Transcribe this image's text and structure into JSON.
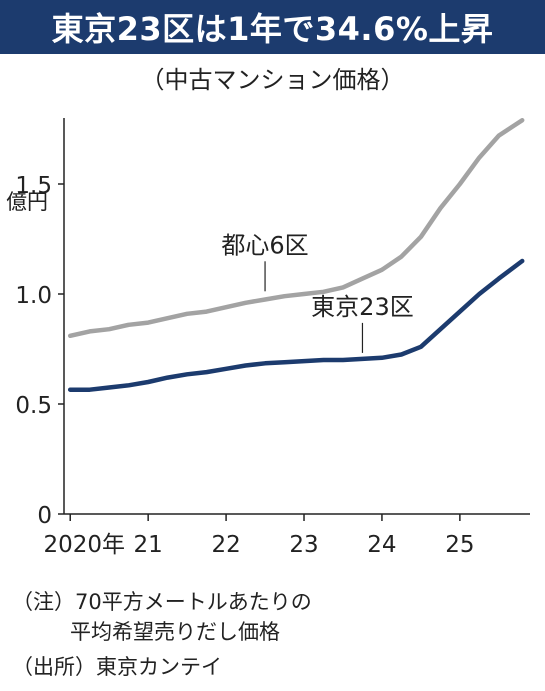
{
  "chart_data": {
    "type": "line",
    "title": "東京23区は1年で34.6%上昇",
    "subtitle": "（中古マンション価格）",
    "ylabel": "億円",
    "ylim": [
      0,
      2.0
    ],
    "xlim": [
      2020.0,
      2025.9
    ],
    "yticks": [
      {
        "value": 0,
        "label": "0"
      },
      {
        "value": 0.5,
        "label": "0.5"
      },
      {
        "value": 1.0,
        "label": "1.0"
      },
      {
        "value": 1.5,
        "label": "1.5"
      }
    ],
    "xticks": [
      {
        "value": 2020,
        "label": "2020年"
      },
      {
        "value": 2021,
        "label": "21"
      },
      {
        "value": 2022,
        "label": "22"
      },
      {
        "value": 2023,
        "label": "23"
      },
      {
        "value": 2024,
        "label": "24"
      },
      {
        "value": 2025,
        "label": "25"
      }
    ],
    "grid": false,
    "series": [
      {
        "name": "都心6区",
        "color": "#a3a3a3",
        "label_at": {
          "x": 2022.5,
          "y": 0.985
        },
        "points": [
          [
            2020.0,
            0.81
          ],
          [
            2020.25,
            0.83
          ],
          [
            2020.5,
            0.84
          ],
          [
            2020.75,
            0.86
          ],
          [
            2021.0,
            0.87
          ],
          [
            2021.25,
            0.89
          ],
          [
            2021.5,
            0.91
          ],
          [
            2021.75,
            0.92
          ],
          [
            2022.0,
            0.94
          ],
          [
            2022.25,
            0.96
          ],
          [
            2022.5,
            0.975
          ],
          [
            2022.75,
            0.99
          ],
          [
            2023.0,
            1.0
          ],
          [
            2023.25,
            1.01
          ],
          [
            2023.5,
            1.03
          ],
          [
            2023.75,
            1.07
          ],
          [
            2024.0,
            1.11
          ],
          [
            2024.25,
            1.17
          ],
          [
            2024.5,
            1.26
          ],
          [
            2024.75,
            1.39
          ],
          [
            2025.0,
            1.5
          ],
          [
            2025.25,
            1.62
          ],
          [
            2025.5,
            1.72
          ],
          [
            2025.8,
            1.79
          ]
        ]
      },
      {
        "name": "東京23区",
        "color": "#1c3b6e",
        "label_at": {
          "x": 2023.75,
          "y": 0.705
        },
        "points": [
          [
            2020.0,
            0.565
          ],
          [
            2020.25,
            0.565
          ],
          [
            2020.5,
            0.575
          ],
          [
            2020.75,
            0.585
          ],
          [
            2021.0,
            0.6
          ],
          [
            2021.25,
            0.62
          ],
          [
            2021.5,
            0.635
          ],
          [
            2021.75,
            0.645
          ],
          [
            2022.0,
            0.66
          ],
          [
            2022.25,
            0.675
          ],
          [
            2022.5,
            0.685
          ],
          [
            2022.75,
            0.69
          ],
          [
            2023.0,
            0.695
          ],
          [
            2023.25,
            0.7
          ],
          [
            2023.5,
            0.7
          ],
          [
            2023.75,
            0.705
          ],
          [
            2024.0,
            0.71
          ],
          [
            2024.25,
            0.725
          ],
          [
            2024.5,
            0.76
          ],
          [
            2024.75,
            0.84
          ],
          [
            2025.0,
            0.92
          ],
          [
            2025.25,
            1.0
          ],
          [
            2025.5,
            1.07
          ],
          [
            2025.8,
            1.15
          ]
        ]
      }
    ]
  },
  "notes": {
    "note_line1": "（注）70平方メートルあたりの",
    "note_line2": "平均希望売りだし価格",
    "source": "（出所）東京カンテイ"
  }
}
